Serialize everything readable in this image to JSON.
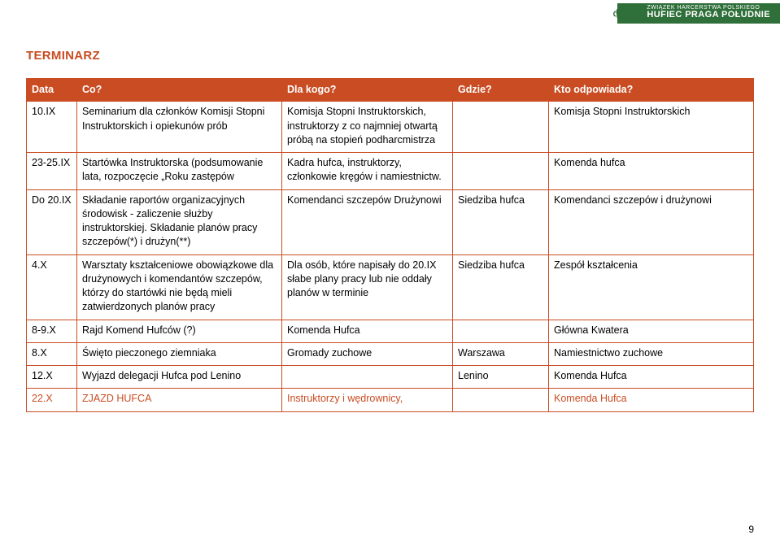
{
  "brand": {
    "small_line": "ZWIĄZEK HARCERSTWA POLSKIEGO",
    "big_line": "HUFIEC PRAGA POŁUDNIE",
    "accent_color": "#2f6f3a"
  },
  "title": "TERMINARZ",
  "title_color": "#c94c22",
  "table": {
    "border_color": "#c94c22",
    "header_bg": "#c94c22",
    "header_fg": "#ffffff",
    "columns": [
      {
        "key": "date",
        "label": "Data"
      },
      {
        "key": "what",
        "label": "Co?"
      },
      {
        "key": "who",
        "label": "Dla kogo?"
      },
      {
        "key": "where",
        "label": "Gdzie?"
      },
      {
        "key": "resp",
        "label": "Kto odpowiada?"
      }
    ],
    "rows": [
      {
        "date": "10.IX",
        "what": "Seminarium dla członków Komisji Stopni Instruktorskich i opiekunów prób",
        "who": "Komisja Stopni Instruktorskich, instruktorzy z co najmniej otwartą próbą na stopień podharcmistrza",
        "where": "",
        "resp": "Komisja Stopni Instruktorskich"
      },
      {
        "date": "23-25.IX",
        "what": "Startówka Instruktorska (podsumowanie lata, rozpoczęcie „Roku zastępów",
        "who": "Kadra hufca, instruktorzy, członkowie kręgów i namiestnictw.",
        "where": "",
        "resp": "Komenda hufca"
      },
      {
        "date": "Do 20.IX",
        "what": "Składanie  raportów organizacyjnych środowisk - zaliczenie służby instruktorskiej. Składanie planów pracy szczepów(*) i drużyn(**)",
        "who": "Komendanci szczepów Drużynowi",
        "where": "Siedziba hufca",
        "resp": "Komendanci szczepów i drużynowi"
      },
      {
        "date": "4.X",
        "what": "Warsztaty kształceniowe obowiązkowe dla drużynowych i komendantów szczepów, którzy do startówki nie będą mieli zatwierdzonych planów pracy",
        "who": "Dla osób, które napisały do 20.IX słabe plany pracy lub nie oddały planów w terminie",
        "where": "Siedziba hufca",
        "resp": "Zespół kształcenia"
      },
      {
        "date": "8-9.X",
        "what": "Rajd Komend Hufców (?)",
        "who": "Komenda Hufca",
        "where": "",
        "resp": "Główna Kwatera"
      },
      {
        "date": "8.X",
        "what": "Święto pieczonego ziemniaka",
        "who": "Gromady zuchowe",
        "where": "Warszawa",
        "resp": "Namiestnictwo zuchowe"
      },
      {
        "date": "12.X",
        "what": "Wyjazd delegacji Hufca pod Lenino",
        "who": "",
        "where": "Lenino",
        "resp": "Komenda Hufca"
      },
      {
        "date": "22.X",
        "what": "ZJAZD HUFCA",
        "who": "Instruktorzy i wędrownicy,",
        "where": "",
        "resp": "Komenda Hufca",
        "highlight": true
      }
    ]
  },
  "page_number": "9"
}
